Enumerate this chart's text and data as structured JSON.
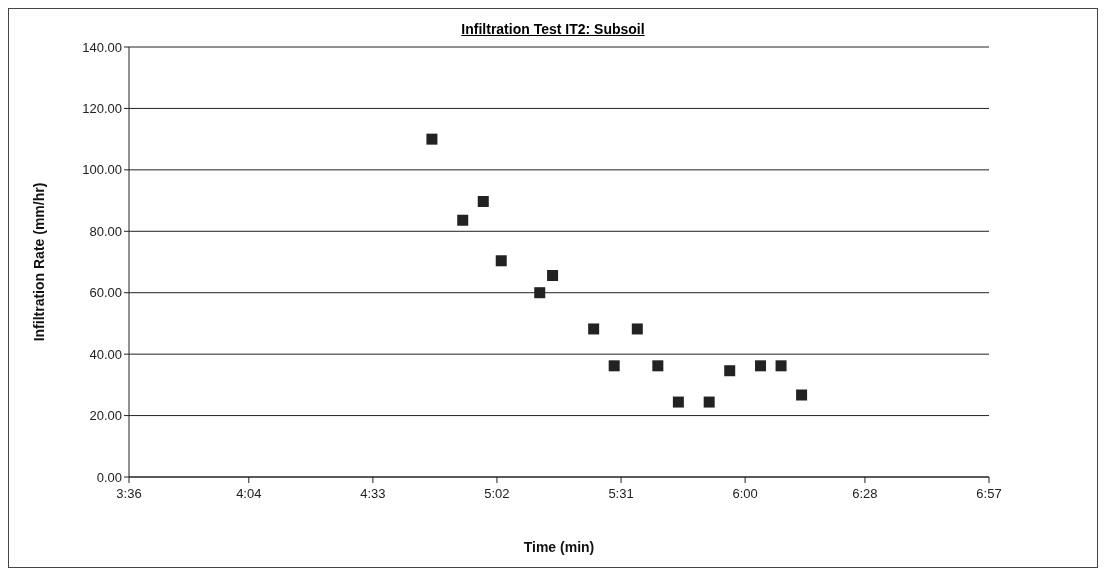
{
  "chart_data": {
    "type": "scatter",
    "title": "Infiltration Test IT2: Subsoil",
    "xlabel": "Time (min)",
    "ylabel": "Infiltration Rate (mm/hr)",
    "x": [
      4.78,
      4.9,
      4.98,
      5.05,
      5.2,
      5.25,
      5.41,
      5.49,
      5.58,
      5.66,
      5.74,
      5.86,
      5.94,
      6.06,
      6.14,
      6.22
    ],
    "series": [
      {
        "color": "#222222",
        "values": [
          110,
          83.6,
          89.7,
          70.4,
          60,
          65.6,
          48.2,
          36.2,
          48.2,
          36.2,
          24.4,
          24.4,
          34.6,
          36.2,
          36.2,
          26.7
        ]
      }
    ],
    "xlim": [
      3.6,
      6.95
    ],
    "xticks": [
      {
        "value": 3.6,
        "label": "3:36"
      },
      {
        "value": 4.0667,
        "label": "4:04"
      },
      {
        "value": 4.55,
        "label": "4:33"
      },
      {
        "value": 5.0333,
        "label": "5:02"
      },
      {
        "value": 5.5167,
        "label": "5:31"
      },
      {
        "value": 6.0,
        "label": "6:00"
      },
      {
        "value": 6.4667,
        "label": "6:28"
      },
      {
        "value": 6.95,
        "label": "6:57"
      }
    ],
    "ylim": [
      0,
      140
    ],
    "yticks": [
      {
        "value": 0,
        "label": "0.00"
      },
      {
        "value": 20,
        "label": "20.00"
      },
      {
        "value": 40,
        "label": "40.00"
      },
      {
        "value": 60,
        "label": "60.00"
      },
      {
        "value": 80,
        "label": "80.00"
      },
      {
        "value": 100,
        "label": "100.00"
      },
      {
        "value": 120,
        "label": "120.00"
      },
      {
        "value": 140,
        "label": "140.00"
      }
    ],
    "grid": "y",
    "marker": "square",
    "legend": false
  }
}
